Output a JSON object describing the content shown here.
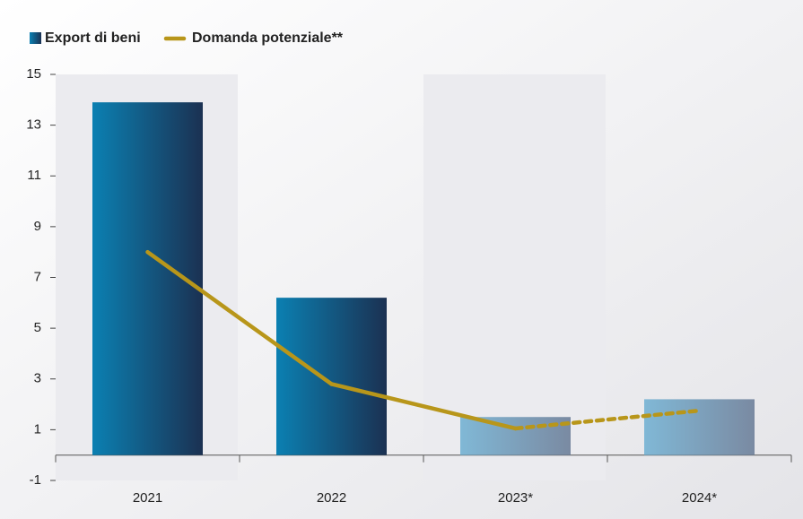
{
  "chart_data": {
    "type": "bar_line",
    "categories": [
      "2021",
      "2022",
      "2023*",
      "2024*"
    ],
    "series": [
      {
        "name": "Export di beni",
        "type": "bar",
        "color": "#0b80b2",
        "values": [
          13.9,
          6.2,
          1.5,
          2.2
        ]
      },
      {
        "name": "Domanda potenziale**",
        "type": "line",
        "color": "#b8961a",
        "values": [
          8.0,
          2.8,
          1.05,
          1.75
        ]
      }
    ],
    "ylim": [
      -1,
      15
    ],
    "yticks": [
      -1,
      1,
      3,
      5,
      7,
      9,
      11,
      13,
      15
    ],
    "legend": "top-left"
  }
}
